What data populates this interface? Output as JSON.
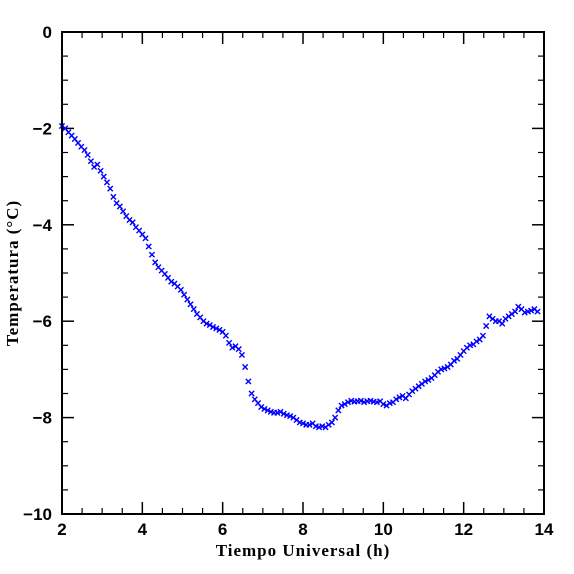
{
  "chart_data": {
    "type": "scatter",
    "title": "",
    "xlabel": "Tiempo Universal (h)",
    "ylabel": "Temperatura (°C)",
    "xlim": [
      2,
      14
    ],
    "ylim": [
      -10,
      0
    ],
    "xticks": [
      2,
      4,
      6,
      8,
      10,
      12,
      14
    ],
    "yticks": [
      -10,
      -8,
      -6,
      -4,
      -2,
      0
    ],
    "xtick_labels": [
      "2",
      "4",
      "6",
      "8",
      "10",
      "12",
      "14"
    ],
    "ytick_labels": [
      "−10",
      "−8",
      "−6",
      "−4",
      "−2",
      "0"
    ],
    "marker": "x",
    "marker_color": "#0000ff",
    "grid": false,
    "series": [
      {
        "x": [
          2.0,
          2.08,
          2.16,
          2.24,
          2.32,
          2.4,
          2.48,
          2.56,
          2.64,
          2.72,
          2.8,
          2.88,
          2.96,
          3.04,
          3.12,
          3.2,
          3.28,
          3.36,
          3.44,
          3.52,
          3.6,
          3.68,
          3.76,
          3.84,
          3.92,
          4.0,
          4.08,
          4.16,
          4.24,
          4.32,
          4.4,
          4.48,
          4.56,
          4.64,
          4.72,
          4.8,
          4.88,
          4.96,
          5.04,
          5.12,
          5.2,
          5.28,
          5.36,
          5.44,
          5.52,
          5.6,
          5.68,
          5.76,
          5.84,
          5.92,
          6.0,
          6.08,
          6.16,
          6.24,
          6.32,
          6.4,
          6.48,
          6.56,
          6.64,
          6.72,
          6.8,
          6.88,
          6.96,
          7.04,
          7.12,
          7.2,
          7.28,
          7.36,
          7.44,
          7.52,
          7.6,
          7.68,
          7.76,
          7.84,
          7.92,
          8.0,
          8.08,
          8.16,
          8.24,
          8.32,
          8.4,
          8.48,
          8.56,
          8.64,
          8.72,
          8.8,
          8.88,
          8.96,
          9.04,
          9.12,
          9.2,
          9.28,
          9.36,
          9.44,
          9.52,
          9.6,
          9.68,
          9.76,
          9.84,
          9.92,
          10.0,
          10.08,
          10.16,
          10.24,
          10.32,
          10.4,
          10.48,
          10.56,
          10.64,
          10.72,
          10.8,
          10.88,
          10.96,
          11.04,
          11.12,
          11.2,
          11.28,
          11.36,
          11.44,
          11.52,
          11.6,
          11.68,
          11.76,
          11.84,
          11.92,
          12.0,
          12.08,
          12.16,
          12.24,
          12.32,
          12.4,
          12.48,
          12.56,
          12.64,
          12.72,
          12.8,
          12.88,
          12.96,
          13.04,
          13.12,
          13.2,
          13.28,
          13.36,
          13.44,
          13.52,
          13.6,
          13.68,
          13.76,
          13.84
        ],
        "y": [
          -1.95,
          -2.0,
          -2.08,
          -2.15,
          -2.22,
          -2.3,
          -2.38,
          -2.45,
          -2.55,
          -2.68,
          -2.8,
          -2.75,
          -2.88,
          -3.0,
          -3.12,
          -3.25,
          -3.42,
          -3.55,
          -3.62,
          -3.72,
          -3.82,
          -3.9,
          -3.95,
          -4.05,
          -4.12,
          -4.2,
          -4.28,
          -4.45,
          -4.62,
          -4.78,
          -4.88,
          -4.95,
          -5.02,
          -5.1,
          -5.18,
          -5.22,
          -5.28,
          -5.35,
          -5.45,
          -5.55,
          -5.65,
          -5.75,
          -5.85,
          -5.92,
          -6.0,
          -6.05,
          -6.08,
          -6.12,
          -6.15,
          -6.18,
          -6.22,
          -6.3,
          -6.45,
          -6.55,
          -6.52,
          -6.58,
          -6.7,
          -6.95,
          -7.25,
          -7.5,
          -7.62,
          -7.7,
          -7.78,
          -7.82,
          -7.85,
          -7.88,
          -7.9,
          -7.9,
          -7.88,
          -7.92,
          -7.95,
          -7.97,
          -8.0,
          -8.05,
          -8.1,
          -8.12,
          -8.15,
          -8.15,
          -8.12,
          -8.18,
          -8.2,
          -8.18,
          -8.2,
          -8.15,
          -8.1,
          -8.0,
          -7.85,
          -7.75,
          -7.72,
          -7.68,
          -7.65,
          -7.67,
          -7.66,
          -7.65,
          -7.68,
          -7.66,
          -7.65,
          -7.67,
          -7.68,
          -7.66,
          -7.72,
          -7.75,
          -7.7,
          -7.68,
          -7.62,
          -7.58,
          -7.55,
          -7.6,
          -7.52,
          -7.45,
          -7.4,
          -7.35,
          -7.3,
          -7.25,
          -7.22,
          -7.18,
          -7.12,
          -7.05,
          -7.0,
          -6.98,
          -6.95,
          -6.9,
          -6.82,
          -6.78,
          -6.7,
          -6.62,
          -6.55,
          -6.5,
          -6.48,
          -6.42,
          -6.38,
          -6.3,
          -6.1,
          -5.9,
          -5.95,
          -6.0,
          -6.0,
          -6.05,
          -5.95,
          -5.9,
          -5.85,
          -5.8,
          -5.7,
          -5.75,
          -5.82,
          -5.8,
          -5.78,
          -5.75,
          -5.8
        ]
      }
    ]
  }
}
